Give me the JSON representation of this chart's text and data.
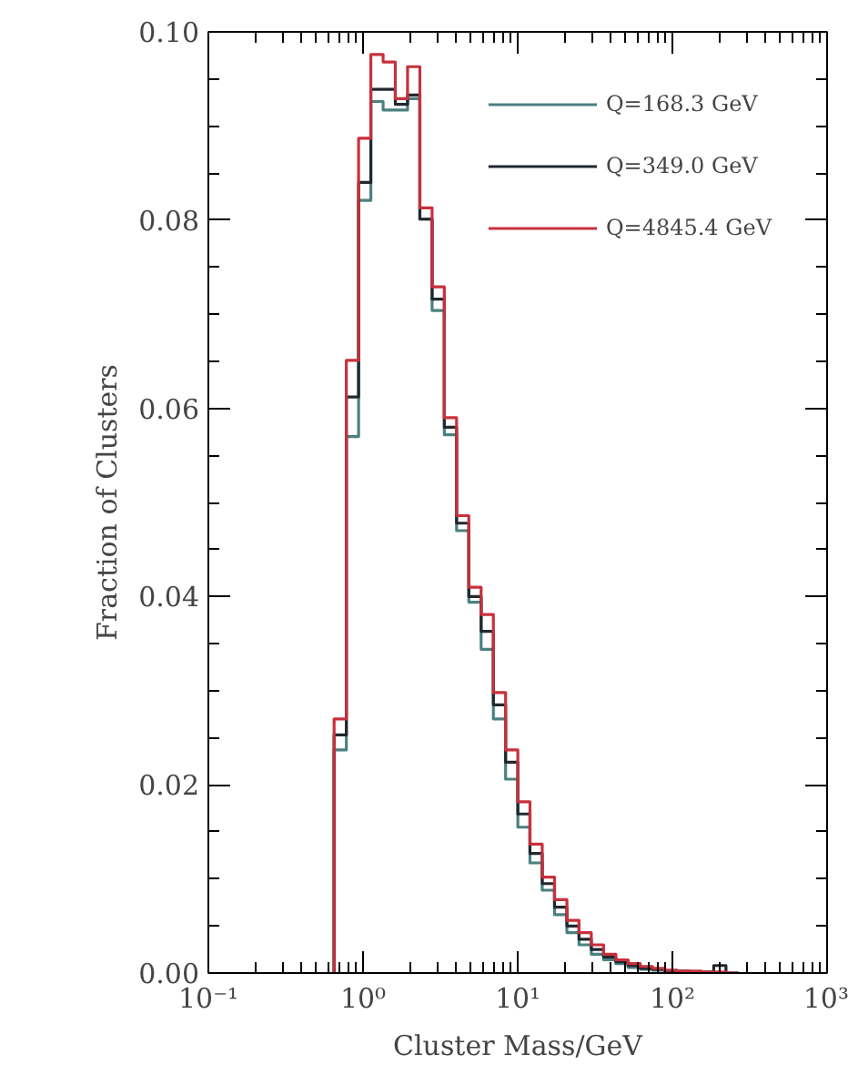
{
  "chart_data": {
    "type": "histogram",
    "xlabel": "Cluster Mass/GeV",
    "ylabel": "Fraction of Clusters",
    "log": "x",
    "grid": false,
    "legend": "top right",
    "xlim": [
      0.1,
      1000
    ],
    "xticks": [
      {
        "value": 0.1,
        "label": "10⁻¹"
      },
      {
        "value": 1,
        "label": "10⁰"
      },
      {
        "value": 10,
        "label": "10¹"
      },
      {
        "value": 100,
        "label": "10²"
      },
      {
        "value": 1000,
        "label": "10³"
      }
    ],
    "ylim": [
      0,
      0.1
    ],
    "yticks": [
      {
        "value": 0,
        "label": "0.00"
      },
      {
        "value": 0.02,
        "label": "0.02"
      },
      {
        "value": 0.04,
        "label": "0.04"
      },
      {
        "value": 0.06,
        "label": "0.06"
      },
      {
        "value": 0.08,
        "label": "0.08"
      },
      {
        "value": 0.1,
        "label": "0.10"
      }
    ],
    "bins": [
      0.65,
      0.78,
      0.936,
      1.123,
      1.348,
      1.617,
      1.94,
      2.33,
      2.795,
      3.354,
      4.025,
      4.83,
      5.8,
      6.96,
      8.35,
      10.02,
      12.0,
      14.4,
      17.3,
      20.8,
      24.9,
      29.9,
      35.9,
      43.1,
      51.7,
      62,
      74.4,
      89.3,
      107,
      129,
      154,
      185,
      222,
      267
    ],
    "series": [
      {
        "name": "Q=168.3 GeV",
        "color": "#4a8080",
        "values": [
          0.0237,
          0.057,
          0.0821,
          0.0926,
          0.0917,
          0.0917,
          0.0929,
          0.0801,
          0.0704,
          0.0572,
          0.047,
          0.0394,
          0.0344,
          0.027,
          0.0206,
          0.0155,
          0.0117,
          0.0088,
          0.0062,
          0.0043,
          0.003,
          0.002,
          0.0014,
          0.001,
          0.0006,
          0.0004,
          0.0003,
          0.0002,
          0.0001,
          0.0001,
          0.0001,
          0,
          0
        ]
      },
      {
        "name": "Q=349.0 GeV",
        "color": "#202830",
        "values": [
          0.0253,
          0.0612,
          0.084,
          0.0939,
          0.0939,
          0.0923,
          0.0933,
          0.0801,
          0.0716,
          0.058,
          0.0478,
          0.04,
          0.0363,
          0.0285,
          0.0224,
          0.0169,
          0.0127,
          0.0095,
          0.007,
          0.005,
          0.0036,
          0.0025,
          0.0017,
          0.0012,
          0.0008,
          0.0005,
          0.0004,
          0.0002,
          0.0002,
          0.0001,
          0.0001,
          0.0008,
          0
        ]
      },
      {
        "name": "Q=4845.4 GeV",
        "color": "#c8303c",
        "values": [
          0.027,
          0.0651,
          0.0887,
          0.0976,
          0.0968,
          0.0929,
          0.0963,
          0.0813,
          0.0729,
          0.059,
          0.0486,
          0.041,
          0.0381,
          0.0298,
          0.0237,
          0.0182,
          0.0137,
          0.0102,
          0.0078,
          0.0056,
          0.0043,
          0.003,
          0.002,
          0.0014,
          0.001,
          0.0007,
          0.0005,
          0.0003,
          0.0002,
          0.0002,
          0.0001,
          0.0001,
          0
        ]
      }
    ]
  }
}
